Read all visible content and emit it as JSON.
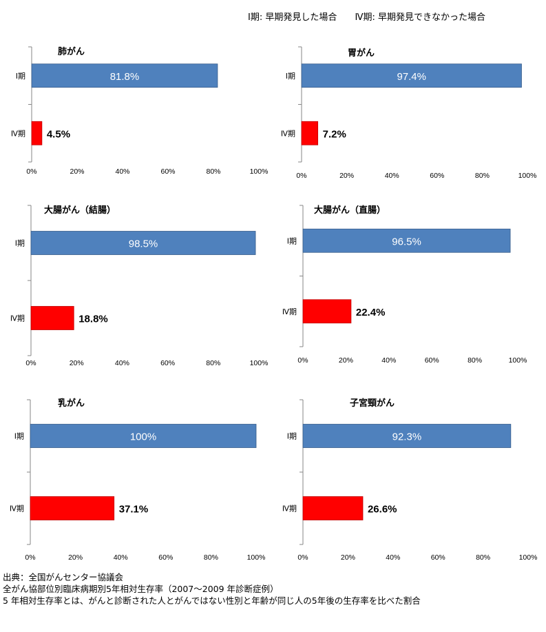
{
  "legend": {
    "stage1": "Ⅰ期: 早期発見した場合",
    "stage4": "Ⅳ期: 早期発見できなかった場合"
  },
  "colors": {
    "stage1": "#4F81BD",
    "stage4": "#FF0000",
    "axis": "#868686",
    "bar_border": "#385D8A"
  },
  "chart_data": [
    {
      "type": "bar",
      "orientation": "horizontal",
      "title": "肺がん",
      "categories": [
        "Ⅰ期",
        "Ⅳ期"
      ],
      "values": [
        81.8,
        4.5
      ],
      "labels": [
        "81.8%",
        "4.5%"
      ],
      "xlim": [
        0,
        100
      ],
      "ticks": [
        "0%",
        "20%",
        "40%",
        "60%",
        "80%",
        "100%"
      ],
      "grid": false
    },
    {
      "type": "bar",
      "orientation": "horizontal",
      "title": "胃がん",
      "categories": [
        "Ⅰ期",
        "Ⅳ期"
      ],
      "values": [
        97.4,
        7.2
      ],
      "labels": [
        "97.4%",
        "7.2%"
      ],
      "xlim": [
        0,
        100
      ],
      "ticks": [
        "0%",
        "20%",
        "40%",
        "60%",
        "80%",
        "100%"
      ],
      "grid": false
    },
    {
      "type": "bar",
      "orientation": "horizontal",
      "title": "大腸がん（結腸）",
      "categories": [
        "Ⅰ期",
        "Ⅳ期"
      ],
      "values": [
        98.5,
        18.8
      ],
      "labels": [
        "98.5%",
        "18.8%"
      ],
      "xlim": [
        0,
        100
      ],
      "ticks": [
        "0%",
        "20%",
        "40%",
        "60%",
        "80%",
        "100%"
      ],
      "grid": false
    },
    {
      "type": "bar",
      "orientation": "horizontal",
      "title": "大腸がん（直腸）",
      "categories": [
        "Ⅰ期",
        "Ⅳ期"
      ],
      "values": [
        96.5,
        22.4
      ],
      "labels": [
        "96.5%",
        "22.4%"
      ],
      "xlim": [
        0,
        100
      ],
      "ticks": [
        "0%",
        "20%",
        "40%",
        "60%",
        "80%",
        "100%"
      ],
      "grid": false
    },
    {
      "type": "bar",
      "orientation": "horizontal",
      "title": "乳がん",
      "categories": [
        "Ⅰ期",
        "Ⅳ期"
      ],
      "values": [
        100,
        37.1
      ],
      "labels": [
        "100%",
        "37.1%"
      ],
      "xlim": [
        0,
        100
      ],
      "ticks": [
        "0%",
        "20%",
        "40%",
        "60%",
        "80%",
        "100%"
      ],
      "grid": false
    },
    {
      "type": "bar",
      "orientation": "horizontal",
      "title": "子宮頸がん",
      "categories": [
        "Ⅰ期",
        "Ⅳ期"
      ],
      "values": [
        92.3,
        26.6
      ],
      "labels": [
        "92.3%",
        "26.6%"
      ],
      "xlim": [
        0,
        100
      ],
      "ticks": [
        "0%",
        "20%",
        "40%",
        "60%",
        "80%",
        "100%"
      ],
      "grid": false
    }
  ],
  "source": {
    "line1": "出典：全国がんセンター協議会",
    "line2": "全がん協部位別臨床病期別5年相対生存率（2007〜2009 年診断症例）",
    "line3": "5 年相対生存率とは、がんと診断された人とがんではない性別と年齢が同じ人の5年後の生存率を比べた割合"
  }
}
